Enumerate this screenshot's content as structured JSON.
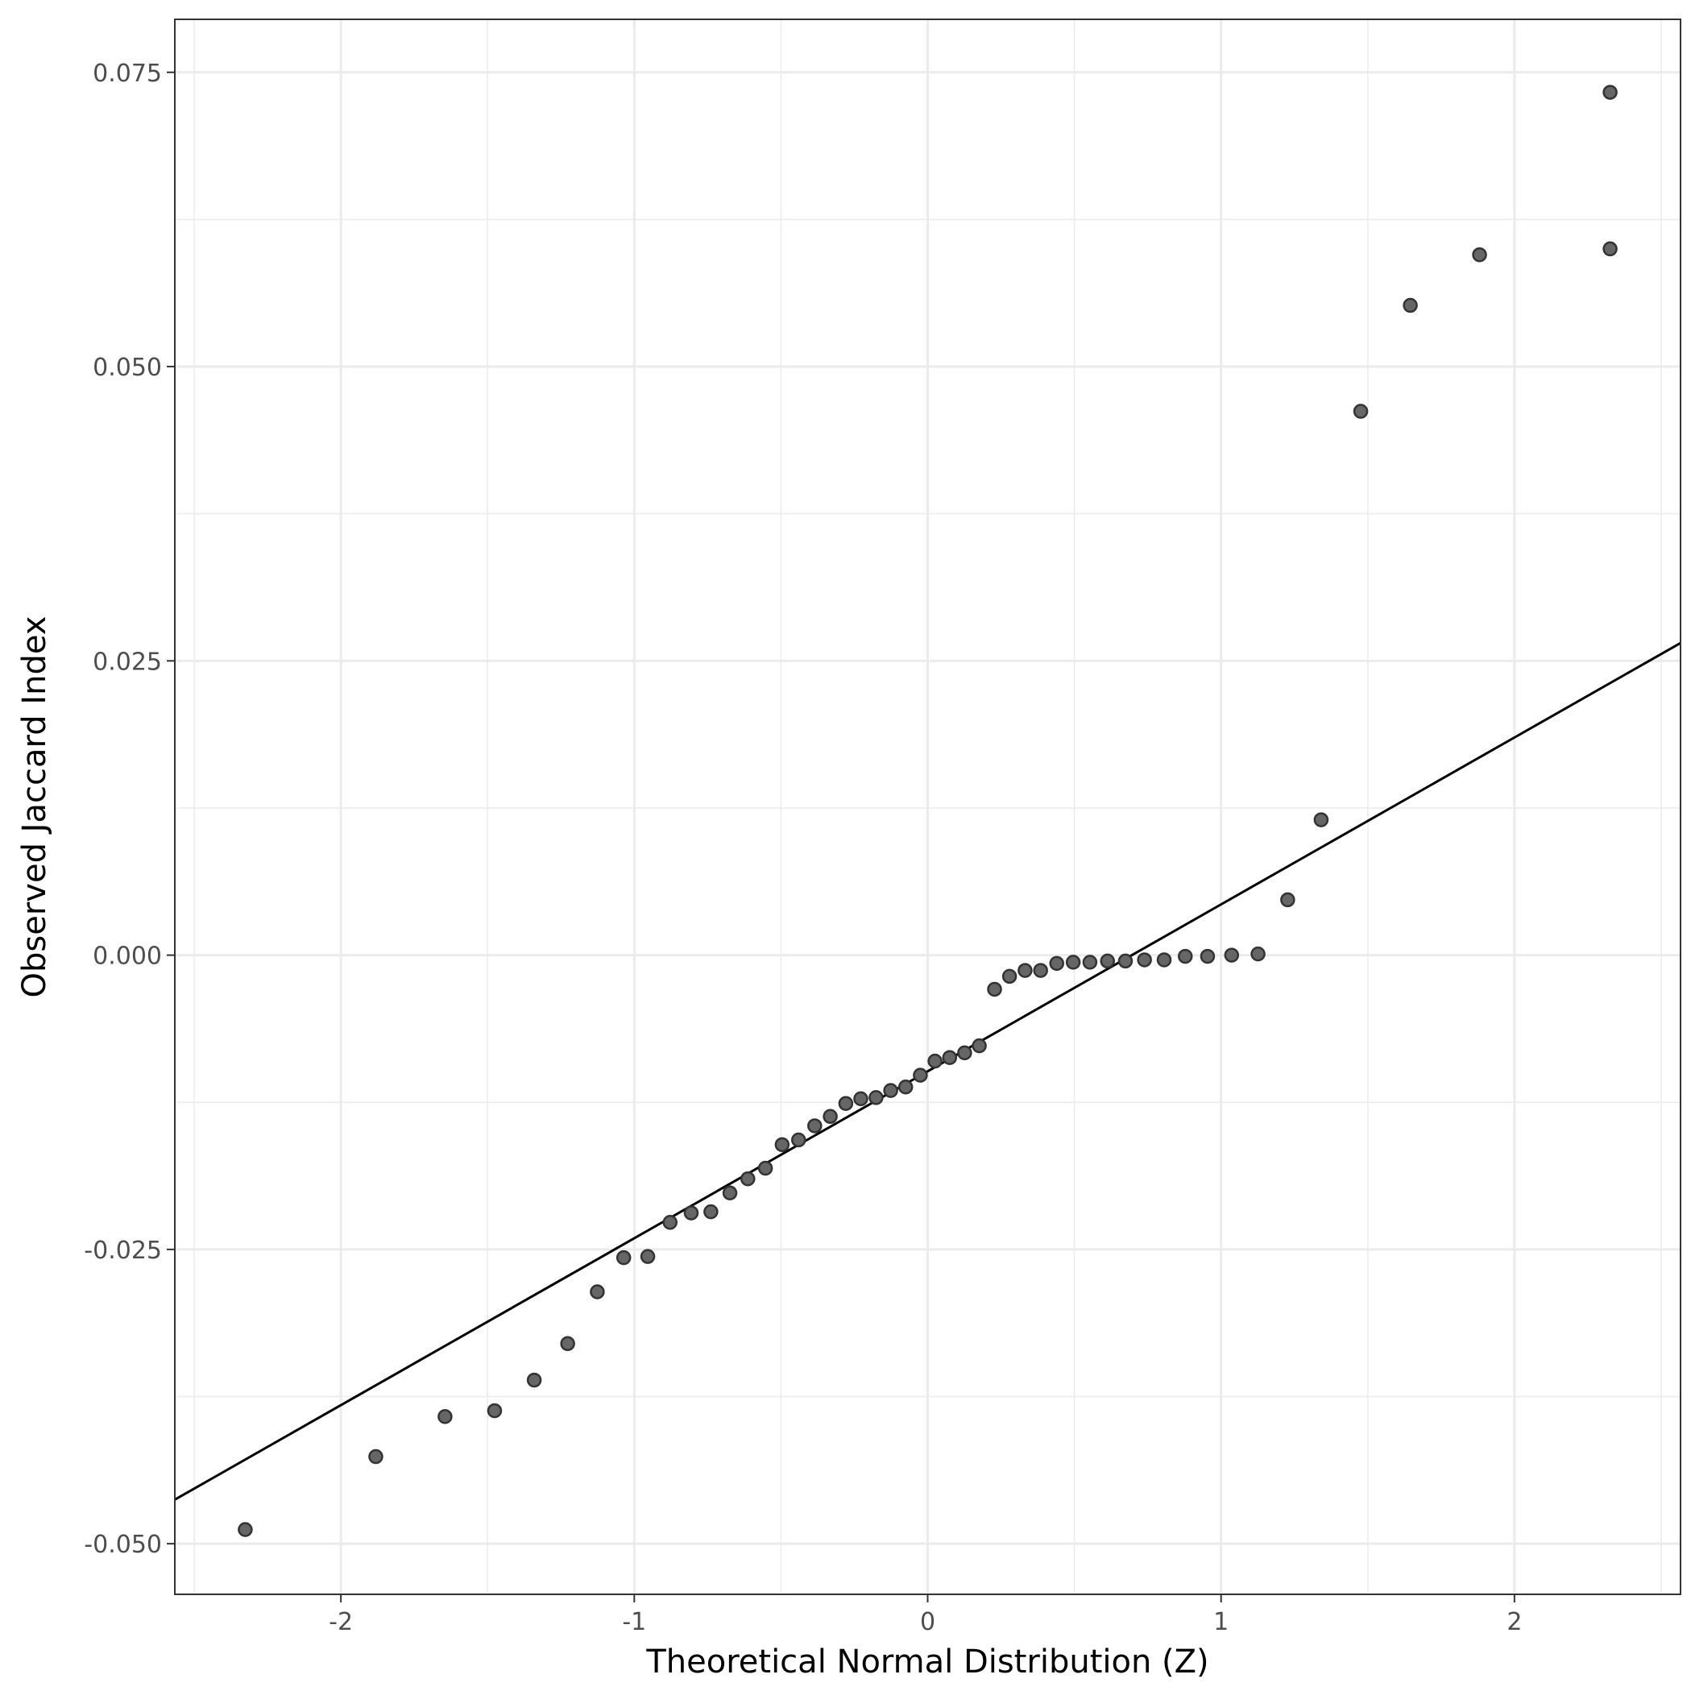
{
  "chart_data": {
    "type": "scatter",
    "title": "",
    "xlabel": "Theoretical Normal Distribution (Z)",
    "ylabel": "Observed Jaccard Index",
    "xlim": [
      -2.566,
      2.566
    ],
    "ylim": [
      -0.0543,
      0.0795
    ],
    "x_ticks": [
      -2,
      -1,
      0,
      1,
      2
    ],
    "x_tick_labels": [
      "-2",
      "-1",
      "0",
      "1",
      "2"
    ],
    "y_ticks": [
      -0.05,
      -0.025,
      0.0,
      0.025,
      0.05,
      0.075
    ],
    "y_tick_labels": [
      "-0.050",
      "-0.025",
      "0.000",
      "0.025",
      "0.050",
      "0.075"
    ],
    "grid": true,
    "legend": "none",
    "reference_line": {
      "slope": 0.01418,
      "intercept": -0.00987,
      "color": "#000000"
    },
    "point_color": "#666666",
    "point_stroke": "#333333",
    "points": [
      {
        "x": -2.326,
        "y": -0.0488
      },
      {
        "x": -1.881,
        "y": -0.0426
      },
      {
        "x": -1.645,
        "y": -0.0392
      },
      {
        "x": -1.476,
        "y": -0.0387
      },
      {
        "x": -1.341,
        "y": -0.0361
      },
      {
        "x": -1.227,
        "y": -0.033
      },
      {
        "x": -1.126,
        "y": -0.0286
      },
      {
        "x": -1.036,
        "y": -0.0257
      },
      {
        "x": -0.954,
        "y": -0.0256
      },
      {
        "x": -0.878,
        "y": -0.0227
      },
      {
        "x": -0.806,
        "y": -0.0219
      },
      {
        "x": -0.739,
        "y": -0.0218
      },
      {
        "x": -0.674,
        "y": -0.0202
      },
      {
        "x": -0.613,
        "y": -0.019
      },
      {
        "x": -0.553,
        "y": -0.0181
      },
      {
        "x": -0.496,
        "y": -0.0161
      },
      {
        "x": -0.44,
        "y": -0.0157
      },
      {
        "x": -0.385,
        "y": -0.0145
      },
      {
        "x": -0.332,
        "y": -0.0137
      },
      {
        "x": -0.279,
        "y": -0.0126
      },
      {
        "x": -0.228,
        "y": -0.0122
      },
      {
        "x": -0.176,
        "y": -0.0121
      },
      {
        "x": -0.126,
        "y": -0.0115
      },
      {
        "x": -0.075,
        "y": -0.0112
      },
      {
        "x": -0.025,
        "y": -0.0102
      },
      {
        "x": 0.025,
        "y": -0.009
      },
      {
        "x": 0.075,
        "y": -0.0087
      },
      {
        "x": 0.126,
        "y": -0.0083
      },
      {
        "x": 0.176,
        "y": -0.0077
      },
      {
        "x": 0.228,
        "y": -0.0029
      },
      {
        "x": 0.279,
        "y": -0.0018
      },
      {
        "x": 0.332,
        "y": -0.0013
      },
      {
        "x": 0.385,
        "y": -0.0013
      },
      {
        "x": 0.44,
        "y": -0.0007
      },
      {
        "x": 0.496,
        "y": -0.0006
      },
      {
        "x": 0.553,
        "y": -0.0006
      },
      {
        "x": 0.613,
        "y": -0.0005
      },
      {
        "x": 0.674,
        "y": -0.0005
      },
      {
        "x": 0.739,
        "y": -0.0004
      },
      {
        "x": 0.806,
        "y": -0.0004
      },
      {
        "x": 0.878,
        "y": -0.0001
      },
      {
        "x": 0.954,
        "y": -0.0001
      },
      {
        "x": 1.036,
        "y": 0.0
      },
      {
        "x": 1.126,
        "y": 0.0001
      },
      {
        "x": 1.227,
        "y": 0.0047
      },
      {
        "x": 1.341,
        "y": 0.0115
      },
      {
        "x": 1.476,
        "y": 0.0462
      },
      {
        "x": 1.645,
        "y": 0.0552
      },
      {
        "x": 1.881,
        "y": 0.0595
      },
      {
        "x": 2.326,
        "y": 0.06
      },
      {
        "x": 2.326,
        "y": 0.0733
      }
    ]
  }
}
